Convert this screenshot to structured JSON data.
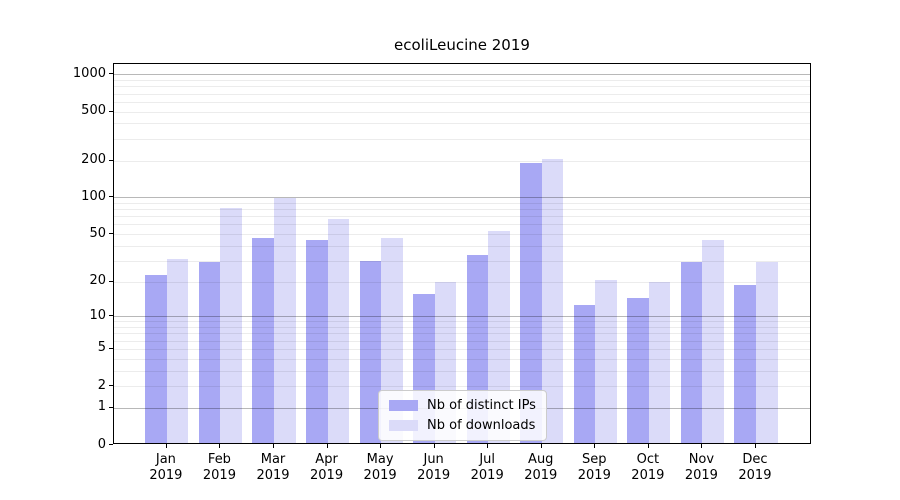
{
  "chart_data": {
    "type": "bar",
    "title": "ecoliLeucine 2019",
    "year_label": "2019",
    "categories": [
      "Jan",
      "Feb",
      "Mar",
      "Apr",
      "May",
      "Jun",
      "Jul",
      "Aug",
      "Sep",
      "Oct",
      "Nov",
      "Dec"
    ],
    "series": [
      {
        "name": "Nb of distinct IPs",
        "color": "#a8a8f4",
        "values": [
          22,
          28,
          45,
          43,
          29,
          15,
          32,
          185,
          12,
          14,
          28,
          18
        ]
      },
      {
        "name": "Nb of downloads",
        "color": "#dbdbf9",
        "values": [
          30,
          79,
          95,
          64,
          45,
          19,
          51,
          197,
          20,
          19,
          43,
          28
        ]
      }
    ],
    "yscale": "log10(value+1)",
    "ylim": [
      0,
      1200
    ],
    "yticks": [
      1000,
      500,
      200,
      100,
      50,
      20,
      10,
      5,
      2,
      1,
      0
    ],
    "major_gridline_values": [
      1,
      10,
      100,
      1000
    ],
    "minor_gridline_values": [
      2,
      3,
      4,
      5,
      6,
      7,
      8,
      9,
      20,
      30,
      40,
      50,
      60,
      70,
      80,
      90,
      200,
      300,
      400,
      500,
      600,
      700,
      800,
      900
    ],
    "grid": true,
    "legend_position": "lower-center",
    "colors": {
      "background": "#ffffff",
      "axis": "#000000",
      "major_grid": "#b8b8b8",
      "minor_grid": "#ececec"
    }
  }
}
